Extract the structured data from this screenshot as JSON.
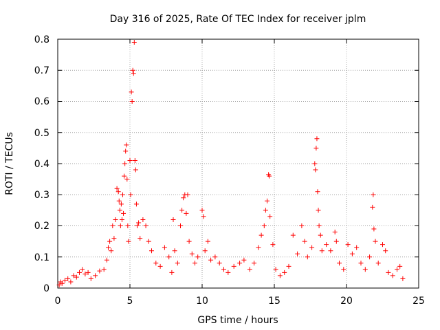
{
  "chart_data": {
    "type": "scatter",
    "title": "Day 316 of 2025, Rate Of TEC Index for receiver jplm",
    "xlabel": "GPS time / hours",
    "ylabel": "ROTI / TECUs",
    "xlim": [
      0,
      25
    ],
    "ylim": [
      0,
      0.8
    ],
    "xticks": [
      "0",
      "5",
      "10",
      "15",
      "20",
      "25"
    ],
    "yticks": [
      "0",
      "0.1",
      "0.2",
      "0.3",
      "0.4",
      "0.5",
      "0.6",
      "0.7",
      "0.8"
    ],
    "grid": true,
    "marker": "+",
    "color": "#ff0000",
    "series": [
      {
        "name": "ROTI",
        "points": [
          [
            0.1,
            0.01
          ],
          [
            0.2,
            0.02
          ],
          [
            0.3,
            0.015
          ],
          [
            0.5,
            0.025
          ],
          [
            0.7,
            0.03
          ],
          [
            0.9,
            0.02
          ],
          [
            1.1,
            0.04
          ],
          [
            1.3,
            0.035
          ],
          [
            1.5,
            0.05
          ],
          [
            1.7,
            0.06
          ],
          [
            1.9,
            0.045
          ],
          [
            2.1,
            0.05
          ],
          [
            2.3,
            0.03
          ],
          [
            2.6,
            0.04
          ],
          [
            2.9,
            0.055
          ],
          [
            3.2,
            0.06
          ],
          [
            3.4,
            0.09
          ],
          [
            3.5,
            0.13
          ],
          [
            3.6,
            0.15
          ],
          [
            3.7,
            0.12
          ],
          [
            3.8,
            0.2
          ],
          [
            3.9,
            0.16
          ],
          [
            4.0,
            0.22
          ],
          [
            4.1,
            0.32
          ],
          [
            4.2,
            0.31
          ],
          [
            4.25,
            0.28
          ],
          [
            4.3,
            0.25
          ],
          [
            4.35,
            0.2
          ],
          [
            4.4,
            0.27
          ],
          [
            4.45,
            0.22
          ],
          [
            4.5,
            0.3
          ],
          [
            4.55,
            0.24
          ],
          [
            4.6,
            0.36
          ],
          [
            4.65,
            0.4
          ],
          [
            4.7,
            0.44
          ],
          [
            4.75,
            0.46
          ],
          [
            4.8,
            0.35
          ],
          [
            4.85,
            0.2
          ],
          [
            4.9,
            0.15
          ],
          [
            5.0,
            0.41
          ],
          [
            5.05,
            0.3
          ],
          [
            5.1,
            0.63
          ],
          [
            5.15,
            0.6
          ],
          [
            5.2,
            0.7
          ],
          [
            5.25,
            0.69
          ],
          [
            5.3,
            0.79
          ],
          [
            5.35,
            0.41
          ],
          [
            5.4,
            0.38
          ],
          [
            5.45,
            0.27
          ],
          [
            5.5,
            0.2
          ],
          [
            5.6,
            0.21
          ],
          [
            5.7,
            0.16
          ],
          [
            5.9,
            0.22
          ],
          [
            6.1,
            0.2
          ],
          [
            6.3,
            0.15
          ],
          [
            6.5,
            0.12
          ],
          [
            6.8,
            0.08
          ],
          [
            7.1,
            0.07
          ],
          [
            7.4,
            0.13
          ],
          [
            7.7,
            0.1
          ],
          [
            7.9,
            0.05
          ],
          [
            8.0,
            0.22
          ],
          [
            8.1,
            0.12
          ],
          [
            8.3,
            0.08
          ],
          [
            8.5,
            0.2
          ],
          [
            8.6,
            0.25
          ],
          [
            8.7,
            0.29
          ],
          [
            8.8,
            0.3
          ],
          [
            8.9,
            0.24
          ],
          [
            9.0,
            0.3
          ],
          [
            9.1,
            0.15
          ],
          [
            9.3,
            0.11
          ],
          [
            9.5,
            0.08
          ],
          [
            9.7,
            0.1
          ],
          [
            10.0,
            0.25
          ],
          [
            10.1,
            0.23
          ],
          [
            10.2,
            0.12
          ],
          [
            10.4,
            0.15
          ],
          [
            10.6,
            0.09
          ],
          [
            10.9,
            0.1
          ],
          [
            11.2,
            0.08
          ],
          [
            11.5,
            0.06
          ],
          [
            11.8,
            0.05
          ],
          [
            12.2,
            0.07
          ],
          [
            12.6,
            0.08
          ],
          [
            12.9,
            0.09
          ],
          [
            13.3,
            0.06
          ],
          [
            13.6,
            0.08
          ],
          [
            13.9,
            0.13
          ],
          [
            14.1,
            0.17
          ],
          [
            14.3,
            0.2
          ],
          [
            14.4,
            0.25
          ],
          [
            14.5,
            0.28
          ],
          [
            14.6,
            0.365
          ],
          [
            14.65,
            0.36
          ],
          [
            14.7,
            0.23
          ],
          [
            14.9,
            0.14
          ],
          [
            15.1,
            0.06
          ],
          [
            15.4,
            0.04
          ],
          [
            15.7,
            0.05
          ],
          [
            16.0,
            0.07
          ],
          [
            16.3,
            0.17
          ],
          [
            16.6,
            0.11
          ],
          [
            16.9,
            0.2
          ],
          [
            17.1,
            0.15
          ],
          [
            17.3,
            0.1
          ],
          [
            17.6,
            0.13
          ],
          [
            17.8,
            0.4
          ],
          [
            17.85,
            0.38
          ],
          [
            17.9,
            0.45
          ],
          [
            17.95,
            0.48
          ],
          [
            18.0,
            0.31
          ],
          [
            18.05,
            0.25
          ],
          [
            18.1,
            0.2
          ],
          [
            18.2,
            0.17
          ],
          [
            18.3,
            0.12
          ],
          [
            18.6,
            0.14
          ],
          [
            18.9,
            0.12
          ],
          [
            19.2,
            0.18
          ],
          [
            19.3,
            0.15
          ],
          [
            19.5,
            0.08
          ],
          [
            19.8,
            0.06
          ],
          [
            20.1,
            0.14
          ],
          [
            20.4,
            0.11
          ],
          [
            20.7,
            0.13
          ],
          [
            21.0,
            0.08
          ],
          [
            21.3,
            0.06
          ],
          [
            21.6,
            0.1
          ],
          [
            21.8,
            0.26
          ],
          [
            21.85,
            0.3
          ],
          [
            21.9,
            0.19
          ],
          [
            22.0,
            0.15
          ],
          [
            22.2,
            0.08
          ],
          [
            22.5,
            0.14
          ],
          [
            22.7,
            0.12
          ],
          [
            22.9,
            0.05
          ],
          [
            23.2,
            0.04
          ],
          [
            23.5,
            0.06
          ],
          [
            23.7,
            0.07
          ],
          [
            23.9,
            0.03
          ]
        ]
      }
    ]
  }
}
